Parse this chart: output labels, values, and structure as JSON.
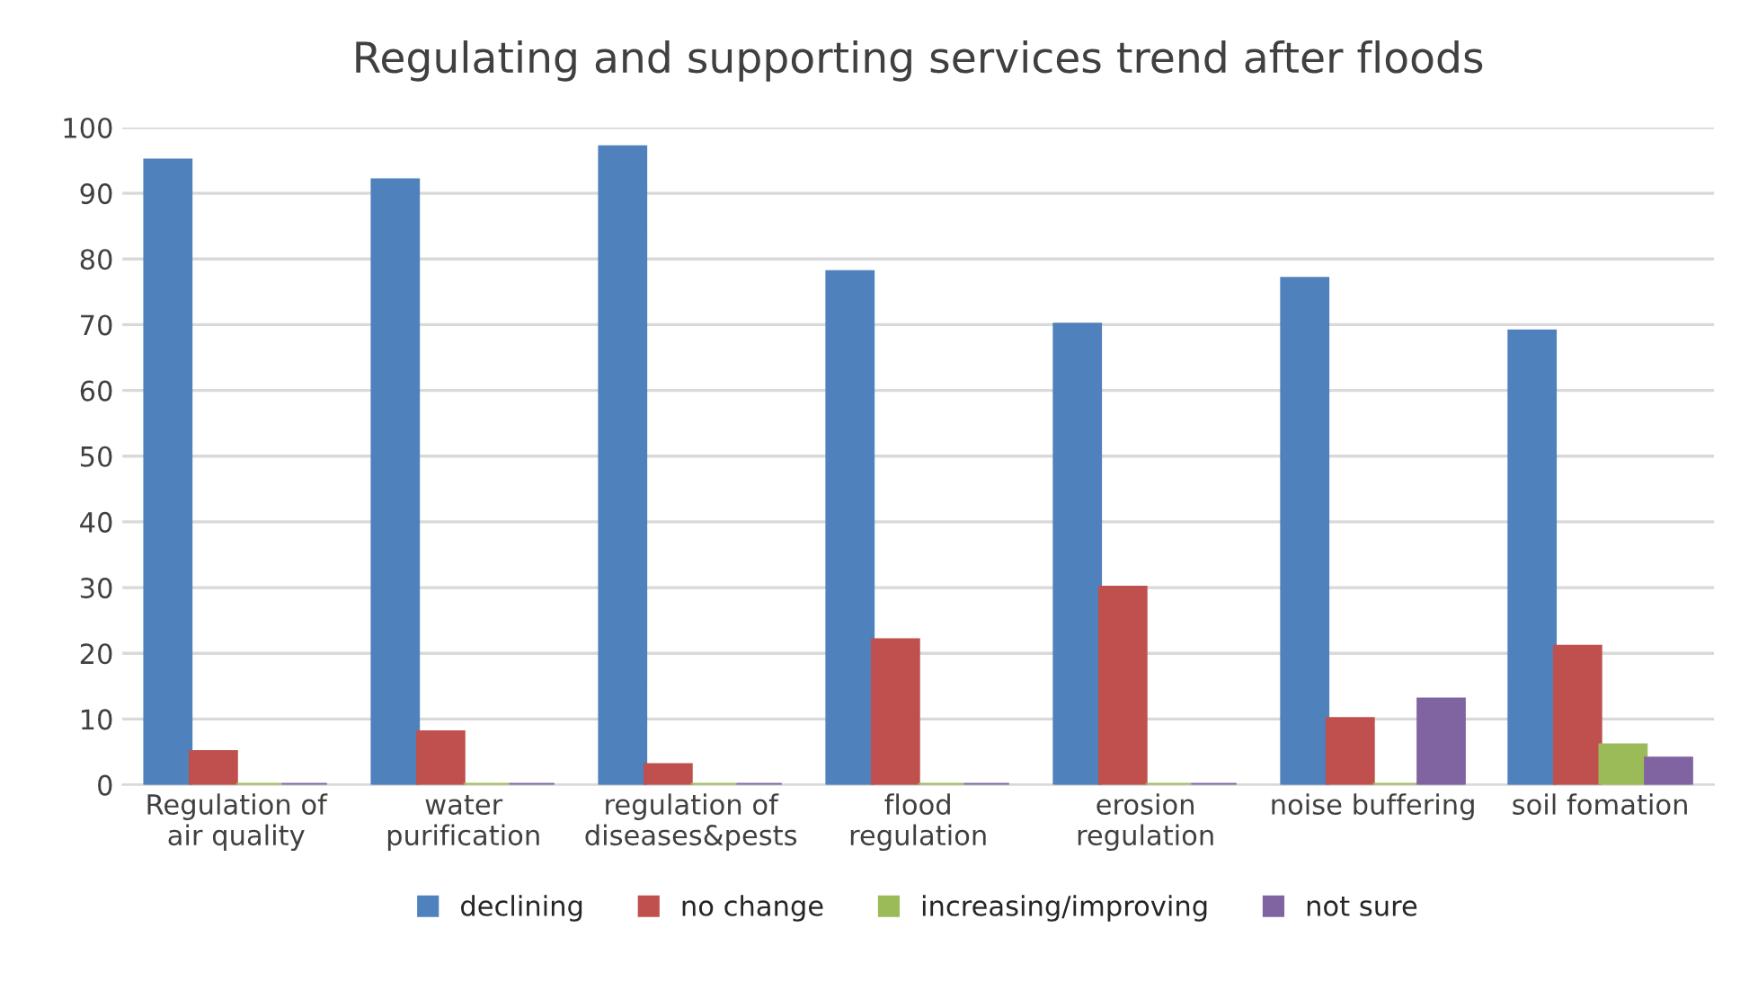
{
  "chart_data": {
    "type": "bar",
    "title": "Regulating and supporting services trend after floods",
    "categories": [
      "Regulation of\nair quality",
      "water\npurification",
      "regulation of\ndiseases&pests",
      "flood\nregulation",
      "erosion\nregulation",
      "noise buffering",
      "soil fomation"
    ],
    "series": [
      {
        "name": "declining",
        "color": "#4f81bd",
        "values": [
          95,
          92,
          97,
          78,
          70,
          77,
          69
        ]
      },
      {
        "name": "no change",
        "color": "#c0504d",
        "values": [
          5,
          8,
          3,
          22,
          30,
          10,
          21
        ]
      },
      {
        "name": "increasing/improving",
        "color": "#9bbb59",
        "values": [
          0,
          0,
          0,
          0,
          0,
          0,
          6
        ]
      },
      {
        "name": "not sure",
        "color": "#8064a2",
        "values": [
          0,
          0,
          0,
          0,
          0,
          13,
          4
        ]
      }
    ],
    "ylim": [
      0,
      100
    ],
    "yticks": [
      0,
      10,
      20,
      30,
      40,
      50,
      60,
      70,
      80,
      90,
      100
    ],
    "grid": "y",
    "legend": "bottom"
  }
}
